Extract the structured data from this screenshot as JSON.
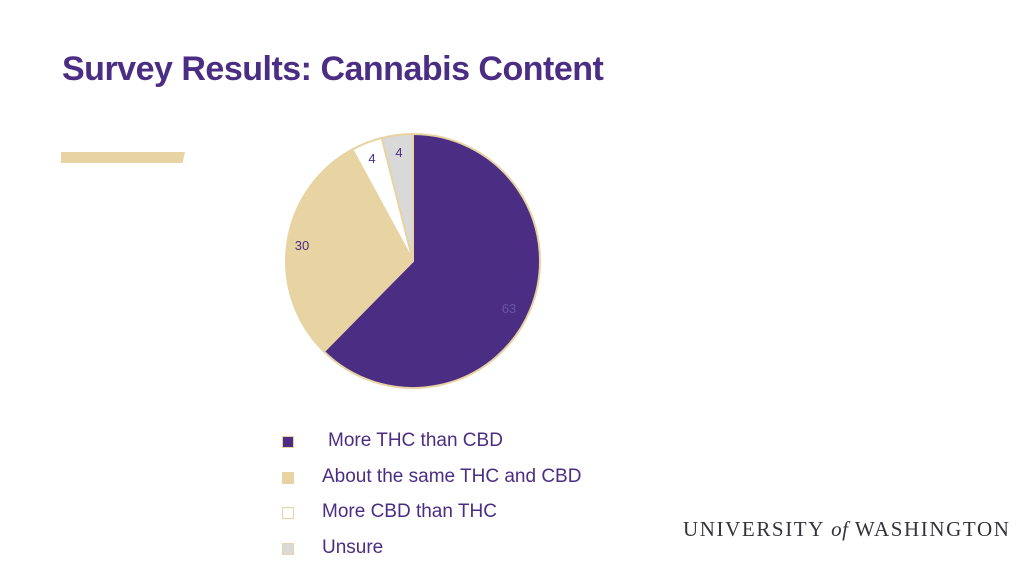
{
  "slide": {
    "title": "Survey Results: Cannabis Content"
  },
  "chart_data": {
    "type": "pie",
    "title": "",
    "categories": [
      "More THC than CBD",
      "About the same THC and CBD",
      "More CBD than THC",
      "Unsure"
    ],
    "values": [
      63,
      30,
      4,
      4
    ],
    "data_labels": [
      "63",
      "30",
      "4",
      "4"
    ],
    "colors": [
      "#4b2e83",
      "#e8d3a2",
      "#ffffff",
      "#d9d9d9"
    ],
    "label_colors": [
      "#6a54a8",
      "#4b2e83",
      "#4b2e83",
      "#4b2e83"
    ],
    "outline_color": "#e8d3a2",
    "start_angle_deg": 0,
    "direction": "clockwise",
    "legend_position": "bottom"
  },
  "logo": {
    "text_before": "UNIVERSITY",
    "text_of": "of",
    "text_after": "WASHINGTON"
  }
}
